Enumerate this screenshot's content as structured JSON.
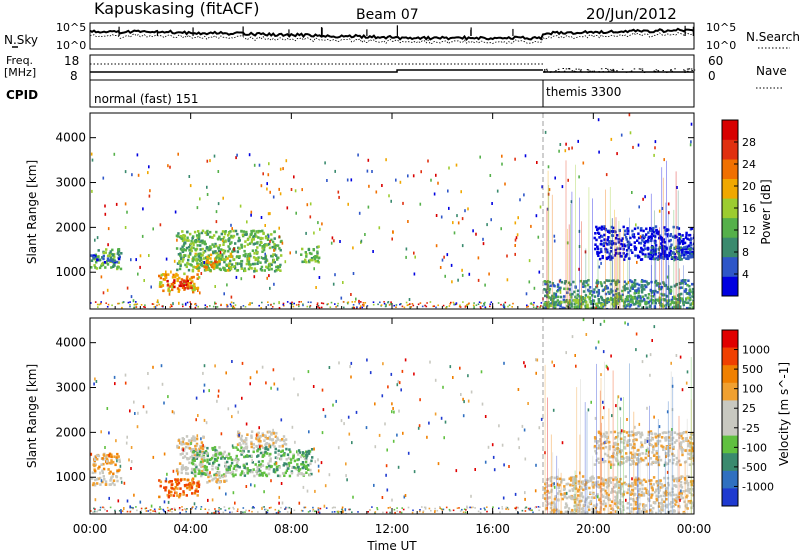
{
  "header": {
    "title": "Kapuskasing (fitACF)",
    "beam": "Beam 07",
    "date": "20/Jun/2012"
  },
  "top_panels": {
    "nsky_label": "N.Sky",
    "nsearch_label": "N.Search",
    "n_ticks_left": [
      "10^5",
      "10^0"
    ],
    "n_ticks_right": [
      "10^5",
      "10^0"
    ],
    "freq_label": "Freq.",
    "freq_unit": "[MHz]",
    "freq_ticks": [
      "18",
      "8"
    ],
    "nave_label": "Nave",
    "nave_ticks": [
      "60",
      "0"
    ],
    "cpid_label": "CPID",
    "cpid_segments": [
      {
        "label": "normal (fast) 151",
        "start": 0.0,
        "end": 18.0
      },
      {
        "label": "themis 3300",
        "start": 18.0,
        "end": 24.0
      }
    ]
  },
  "colors": {
    "power": [
      "#0000e0",
      "#2e56c8",
      "#3a8a6e",
      "#55b04a",
      "#9ccc30",
      "#f0a800",
      "#f07000",
      "#e03010",
      "#d80000"
    ],
    "velocity": [
      "#e00000",
      "#f04000",
      "#f08000",
      "#f0a030",
      "#c8c8c0",
      "#c8c8c0",
      "#60c040",
      "#3a8a6e",
      "#3070c0",
      "#1f3ad0"
    ]
  },
  "chart_data": [
    {
      "type": "heatmap",
      "panel": "power",
      "ylabel": "Slant Range [km]",
      "yticks": [
        1000,
        2000,
        3000,
        4000
      ],
      "ylim": [
        180,
        4550
      ],
      "xlim": [
        0,
        24
      ],
      "colorbar_label": "Power [dB]",
      "colorbar_ticks": [
        "4",
        "8",
        "12",
        "16",
        "20",
        "24",
        "28"
      ],
      "colorbar_range": [
        0,
        32
      ],
      "regions": [
        {
          "x0": 0.0,
          "x1": 1.2,
          "y0": 1100,
          "y1": 1550,
          "level": 3
        },
        {
          "x0": 0.0,
          "x1": 1.2,
          "y0": 1250,
          "y1": 1400,
          "level": 1
        },
        {
          "x0": 2.7,
          "x1": 4.3,
          "y0": 580,
          "y1": 1000,
          "level": 5
        },
        {
          "x0": 3.0,
          "x1": 4.0,
          "y0": 650,
          "y1": 850,
          "level": 7
        },
        {
          "x0": 3.4,
          "x1": 7.6,
          "y0": 1050,
          "y1": 1950,
          "level": 3
        },
        {
          "x0": 4.0,
          "x1": 5.6,
          "y0": 1050,
          "y1": 1450,
          "level": 4
        },
        {
          "x0": 4.5,
          "x1": 5.0,
          "y0": 1100,
          "y1": 1300,
          "level": 6
        },
        {
          "x0": 8.3,
          "x1": 9.1,
          "y0": 1250,
          "y1": 1600,
          "level": 3
        },
        {
          "x0": 18.0,
          "x1": 24.0,
          "y0": 200,
          "y1": 850,
          "level": 2
        },
        {
          "x0": 18.0,
          "x1": 24.0,
          "y0": 250,
          "y1": 500,
          "level": 3
        },
        {
          "x0": 20.0,
          "x1": 24.0,
          "y0": 1300,
          "y1": 2050,
          "level": 0
        },
        {
          "x0": 22.0,
          "x1": 24.0,
          "y0": 1300,
          "y1": 1600,
          "level": 1
        }
      ],
      "vertical_line_x": 18.0
    },
    {
      "type": "heatmap",
      "panel": "velocity",
      "ylabel": "Slant Range [km]",
      "yticks": [
        1000,
        2000,
        3000,
        4000
      ],
      "ylim": [
        180,
        4550
      ],
      "xlim": [
        0,
        24
      ],
      "xticks": [
        "00:00",
        "04:00",
        "08:00",
        "12:00",
        "16:00",
        "20:00",
        "00:00"
      ],
      "xlabel": "Time UT",
      "colorbar_label": "Velocity [m s^-1]",
      "colorbar_ticks": [
        "1000",
        "500",
        "100",
        "25",
        "-25",
        "-100",
        "-500",
        "-1000"
      ],
      "regions": [
        {
          "x0": 0.0,
          "x1": 1.2,
          "y0": 1100,
          "y1": 1550,
          "level": 3
        },
        {
          "x0": 0.0,
          "x1": 1.2,
          "y0": 850,
          "y1": 1050,
          "level": 4
        },
        {
          "x0": 2.7,
          "x1": 4.3,
          "y0": 580,
          "y1": 1000,
          "level": 2
        },
        {
          "x0": 3.4,
          "x1": 4.5,
          "y0": 1100,
          "y1": 1950,
          "level": 4
        },
        {
          "x0": 4.0,
          "x1": 8.8,
          "y0": 1050,
          "y1": 1700,
          "level": 6
        },
        {
          "x0": 4.6,
          "x1": 5.4,
          "y0": 900,
          "y1": 1150,
          "level": 4
        },
        {
          "x0": 5.8,
          "x1": 7.8,
          "y0": 1700,
          "y1": 2050,
          "level": 4
        },
        {
          "x0": 18.0,
          "x1": 24.0,
          "y0": 200,
          "y1": 1050,
          "level": 4
        },
        {
          "x0": 20.0,
          "x1": 24.0,
          "y0": 1300,
          "y1": 2050,
          "level": 4
        }
      ],
      "vertical_line_x": 18.0
    }
  ]
}
